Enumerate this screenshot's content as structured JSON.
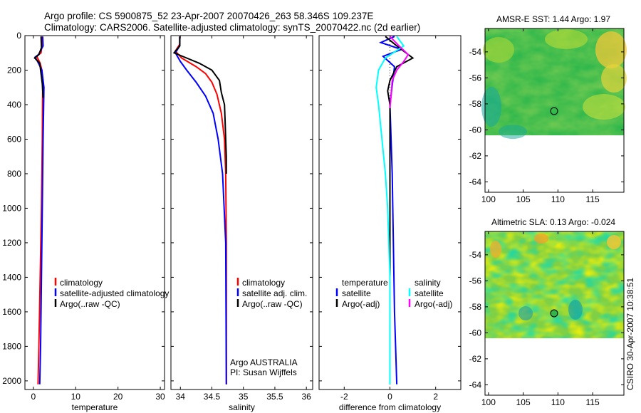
{
  "header": {
    "line1": "Argo profile: CS 5900875_52 23-Apr-2007 20070426_263 58.346S 109.237E",
    "line2": "Climatology: CARS2006. Satellite-adjusted climatology: synTS_20070422.nc (2d earlier)"
  },
  "side_text": "CSIRO 30-Apr-2007 10:38:51",
  "colors": {
    "climatology": "#ff0000",
    "satellite": "#0000ff",
    "argo": "#000000",
    "sat_salinity": "#00ffff",
    "argo_salinity": "#ff00ff"
  },
  "chart_data": [
    {
      "type": "line",
      "id": "temperature",
      "xlabel": "temperature",
      "ylabel": "",
      "xlim": [
        -2,
        31
      ],
      "ylim": [
        2050,
        0
      ],
      "xticks": [
        0,
        10,
        20,
        30
      ],
      "yticks": [
        0,
        200,
        400,
        600,
        800,
        1000,
        1200,
        1400,
        1600,
        1800,
        2000
      ],
      "legend": {
        "position": "center-right",
        "entries": [
          {
            "label": "climatology",
            "color": "#ff0000"
          },
          {
            "label": "satellite-adjusted climatology",
            "color": "#0000ff"
          },
          {
            "label": "Argo(..raw -QC)",
            "color": "#000000"
          }
        ]
      },
      "series": [
        {
          "name": "climatology",
          "color": "#ff0000",
          "points": [
            [
              2.0,
              5
            ],
            [
              2.0,
              60
            ],
            [
              1.8,
              100
            ],
            [
              0.8,
              120
            ],
            [
              1.2,
              140
            ],
            [
              1.6,
              160
            ],
            [
              2.0,
              200
            ],
            [
              2.2,
              300
            ],
            [
              2.1,
              600
            ],
            [
              1.9,
              1000
            ],
            [
              1.6,
              1400
            ],
            [
              1.3,
              1800
            ],
            [
              1.1,
              2020
            ]
          ]
        },
        {
          "name": "satellite-adjusted climatology",
          "color": "#0000ff",
          "points": [
            [
              2.2,
              5
            ],
            [
              2.3,
              60
            ],
            [
              1.2,
              110
            ],
            [
              0.4,
              125
            ],
            [
              1.0,
              150
            ],
            [
              2.0,
              200
            ],
            [
              2.5,
              300
            ],
            [
              2.3,
              600
            ],
            [
              2.1,
              1000
            ],
            [
              1.9,
              1400
            ],
            [
              1.7,
              1800
            ],
            [
              1.5,
              2020
            ]
          ]
        },
        {
          "name": "Argo(..raw -QC)",
          "color": "#000000",
          "points": [
            [
              1.8,
              5
            ],
            [
              1.9,
              70
            ],
            [
              1.3,
              110
            ],
            [
              0.3,
              130
            ],
            [
              1.5,
              160
            ],
            [
              1.7,
              200
            ],
            [
              2.1,
              280
            ],
            [
              2.3,
              360
            ]
          ]
        }
      ]
    },
    {
      "type": "line",
      "id": "salinity",
      "xlabel": "salinity",
      "xlim": [
        33.85,
        36.1
      ],
      "ylim": [
        2050,
        0
      ],
      "xticks": [
        34,
        34.5,
        35,
        35.5,
        36
      ],
      "xticklabels": [
        "34",
        "34.5",
        "35",
        "35.5",
        "36"
      ],
      "legend": {
        "position": "center-right",
        "entries": [
          {
            "label": "climatology",
            "color": "#ff0000"
          },
          {
            "label": "satellite adj. clim.",
            "color": "#0000ff"
          },
          {
            "label": "Argo(..raw -QC)",
            "color": "#000000"
          }
        ]
      },
      "annotation": [
        "Argo AUSTRALIA",
        "PI: Susan Wijffels"
      ],
      "series": [
        {
          "name": "climatology",
          "color": "#ff0000",
          "points": [
            [
              33.99,
              5
            ],
            [
              33.99,
              50
            ],
            [
              33.92,
              90
            ],
            [
              34.02,
              130
            ],
            [
              34.25,
              180
            ],
            [
              34.4,
              220
            ],
            [
              34.5,
              270
            ],
            [
              34.58,
              340
            ],
            [
              34.65,
              450
            ],
            [
              34.7,
              600
            ],
            [
              34.72,
              800
            ],
            [
              34.73,
              1200
            ],
            [
              34.73,
              2020
            ]
          ]
        },
        {
          "name": "satellite adj. clim.",
          "color": "#0000ff",
          "points": [
            [
              33.99,
              5
            ],
            [
              33.99,
              60
            ],
            [
              33.92,
              100
            ],
            [
              34.0,
              150
            ],
            [
              34.1,
              200
            ],
            [
              34.25,
              270
            ],
            [
              34.4,
              350
            ],
            [
              34.52,
              450
            ],
            [
              34.6,
              600
            ],
            [
              34.67,
              800
            ],
            [
              34.72,
              1200
            ],
            [
              34.73,
              2020
            ]
          ]
        },
        {
          "name": "Argo(..raw -QC)",
          "color": "#000000",
          "points": [
            [
              33.99,
              5
            ],
            [
              33.99,
              60
            ],
            [
              33.9,
              100
            ],
            [
              34.1,
              130
            ],
            [
              34.3,
              160
            ],
            [
              34.5,
              200
            ],
            [
              34.62,
              260
            ],
            [
              34.65,
              330
            ],
            [
              34.7,
              400
            ],
            [
              34.71,
              500
            ],
            [
              34.72,
              600
            ],
            [
              34.73,
              700
            ],
            [
              34.73,
              800
            ]
          ]
        }
      ]
    },
    {
      "type": "line",
      "id": "difference",
      "xlabel": "difference from climatology",
      "xlim": [
        -3.1,
        3.1
      ],
      "ylim": [
        2050,
        0
      ],
      "xticks": [
        -2,
        0,
        2
      ],
      "legend": {
        "position": "center",
        "groups": [
          {
            "title": "temperature",
            "entries": [
              {
                "label": "satellite",
                "color": "#0000ff"
              },
              {
                "label": "Argo(-adj)",
                "color": "#000000"
              }
            ]
          },
          {
            "title": "salinity",
            "entries": [
              {
                "label": "satellite",
                "color": "#00ffff"
              },
              {
                "label": "Argo(-adj)",
                "color": "#ff00ff"
              }
            ]
          }
        ]
      },
      "series": [
        {
          "name": "temperature satellite",
          "color": "#0000ff",
          "points": [
            [
              0.2,
              5
            ],
            [
              -0.4,
              40
            ],
            [
              0.5,
              80
            ],
            [
              -0.3,
              120
            ],
            [
              0.2,
              180
            ],
            [
              0.0,
              400
            ],
            [
              0.1,
              800
            ],
            [
              0.15,
              1200
            ],
            [
              0.2,
              1600
            ],
            [
              0.3,
              2020
            ]
          ]
        },
        {
          "name": "temperature Argo(-adj)",
          "color": "#000000",
          "points": [
            [
              -0.2,
              5
            ],
            [
              0.3,
              60
            ],
            [
              1.0,
              130
            ],
            [
              0.3,
              180
            ],
            [
              0.0,
              260
            ],
            [
              -0.1,
              320
            ],
            [
              0.0,
              400
            ],
            [
              0.0,
              2020
            ]
          ]
        },
        {
          "name": "salinity satellite",
          "color": "#00ffff",
          "points": [
            [
              0.3,
              5
            ],
            [
              0.6,
              60
            ],
            [
              -0.2,
              130
            ],
            [
              -0.5,
              200
            ],
            [
              -0.6,
              300
            ],
            [
              -0.5,
              400
            ],
            [
              -0.35,
              600
            ],
            [
              -0.2,
              800
            ],
            [
              -0.1,
              1000
            ],
            [
              0.0,
              1400
            ],
            [
              0.0,
              2020
            ]
          ]
        },
        {
          "name": "salinity Argo(-adj)",
          "color": "#ff00ff",
          "points": [
            [
              0.0,
              5
            ],
            [
              0.4,
              60
            ],
            [
              0.8,
              110
            ],
            [
              0.6,
              150
            ],
            [
              0.3,
              200
            ],
            [
              0.1,
              260
            ],
            [
              0.05,
              350
            ],
            [
              0.0,
              420
            ]
          ]
        }
      ]
    },
    {
      "type": "heatmap",
      "id": "sst-map",
      "title": "AMSR-E SST: 1.44 Argo: 1.97",
      "xlim": [
        99.5,
        119.5
      ],
      "ylim": [
        -64.8,
        -52.2
      ],
      "xticks": [
        100,
        105,
        110,
        115
      ],
      "yticks": [
        -54,
        -56,
        -58,
        -60,
        -62,
        -64
      ],
      "data_lat_range": [
        -60.2,
        -52.2
      ],
      "marker": {
        "lon": 109.237,
        "lat": -58.346
      }
    },
    {
      "type": "heatmap",
      "id": "sla-map",
      "title": "Altimetric SLA: 0.13 Argo: -0.024",
      "xlim": [
        99.5,
        119.5
      ],
      "ylim": [
        -64.8,
        -52.2
      ],
      "xticks": [
        100,
        105,
        110,
        115
      ],
      "yticks": [
        -54,
        -56,
        -58,
        -60,
        -62,
        -64
      ],
      "data_lat_range": [
        -60.2,
        -52.2
      ],
      "marker": {
        "lon": 109.237,
        "lat": -58.346
      }
    }
  ]
}
